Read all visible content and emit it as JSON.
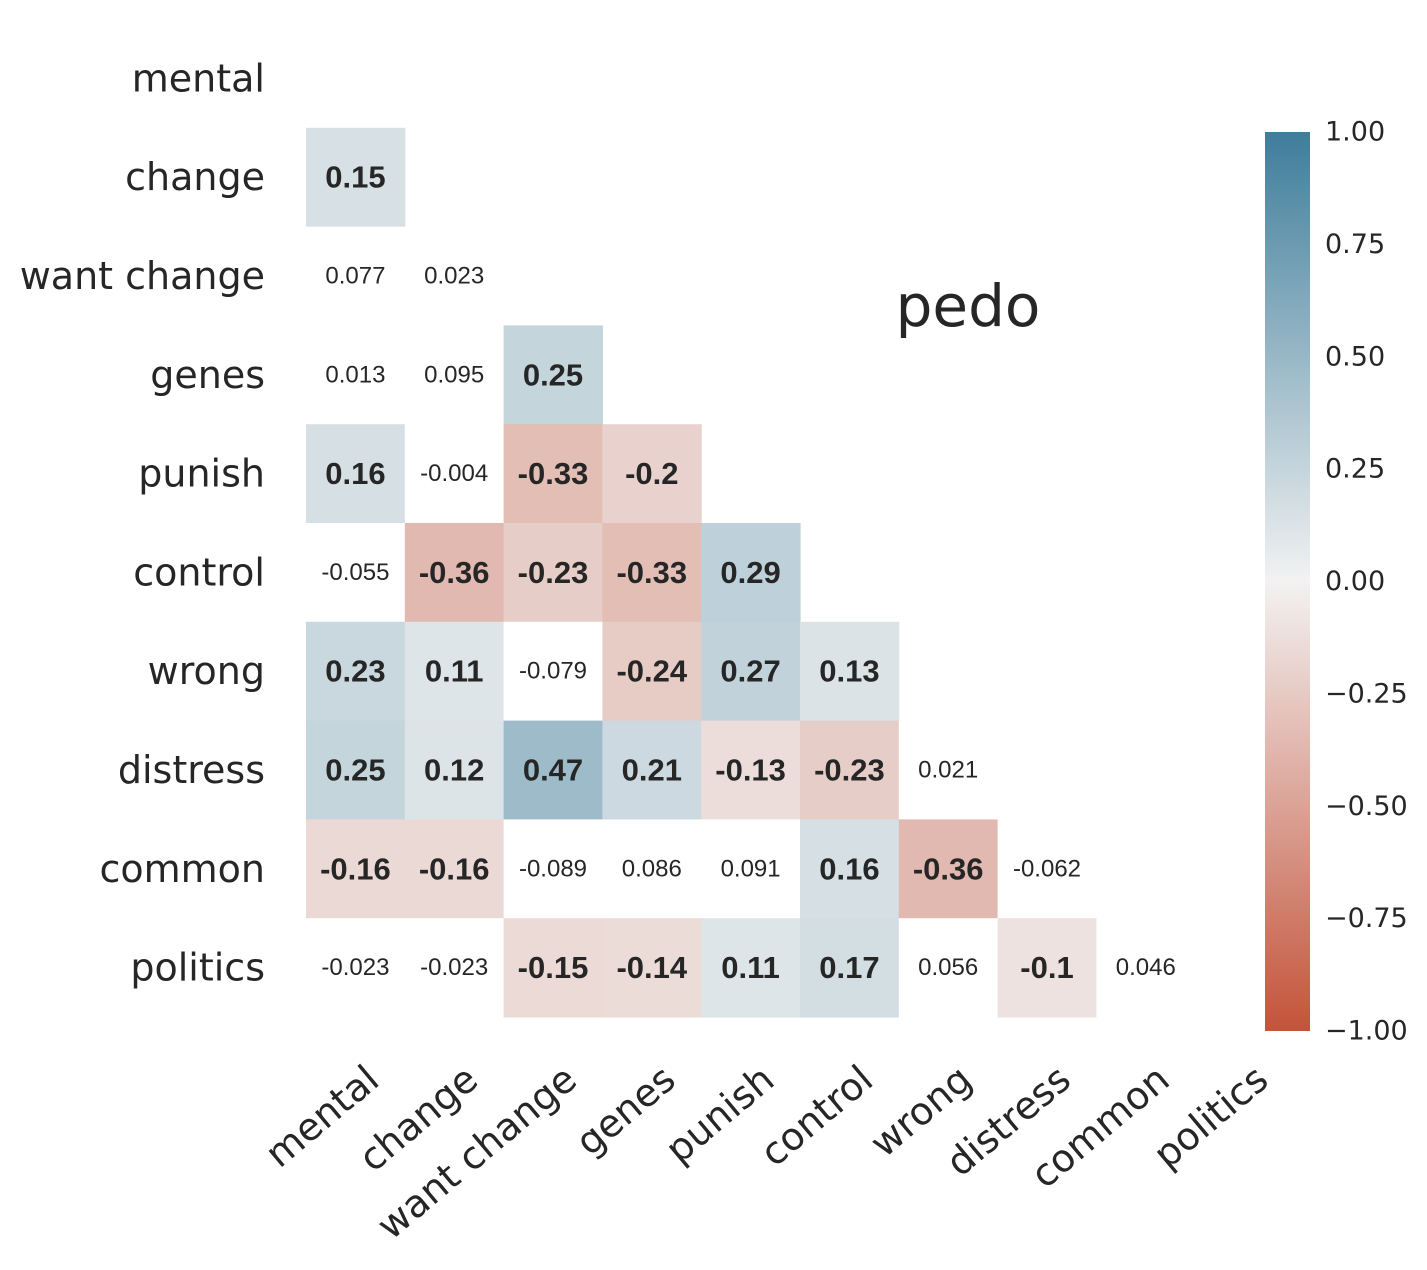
{
  "chart_data": {
    "type": "heatmap",
    "variant": "lower-triangle correlation matrix",
    "annotation": "pedo",
    "labels": [
      "mental",
      "change",
      "want change",
      "genes",
      "punish",
      "control",
      "wrong",
      "distress",
      "common",
      "politics"
    ],
    "cells": [
      {
        "row": 1,
        "col": 0,
        "value": 0.15,
        "text": "0.15"
      },
      {
        "row": 2,
        "col": 0,
        "value": 0.077,
        "text": "0.077"
      },
      {
        "row": 2,
        "col": 1,
        "value": 0.023,
        "text": "0.023"
      },
      {
        "row": 3,
        "col": 0,
        "value": 0.013,
        "text": "0.013"
      },
      {
        "row": 3,
        "col": 1,
        "value": 0.095,
        "text": "0.095"
      },
      {
        "row": 3,
        "col": 2,
        "value": 0.25,
        "text": "0.25"
      },
      {
        "row": 4,
        "col": 0,
        "value": 0.16,
        "text": "0.16"
      },
      {
        "row": 4,
        "col": 1,
        "value": -0.004,
        "text": "-0.004"
      },
      {
        "row": 4,
        "col": 2,
        "value": -0.33,
        "text": "-0.33"
      },
      {
        "row": 4,
        "col": 3,
        "value": -0.2,
        "text": "-0.2"
      },
      {
        "row": 5,
        "col": 0,
        "value": -0.055,
        "text": "-0.055"
      },
      {
        "row": 5,
        "col": 1,
        "value": -0.36,
        "text": "-0.36"
      },
      {
        "row": 5,
        "col": 2,
        "value": -0.23,
        "text": "-0.23"
      },
      {
        "row": 5,
        "col": 3,
        "value": -0.33,
        "text": "-0.33"
      },
      {
        "row": 5,
        "col": 4,
        "value": 0.29,
        "text": "0.29"
      },
      {
        "row": 6,
        "col": 0,
        "value": 0.23,
        "text": "0.23"
      },
      {
        "row": 6,
        "col": 1,
        "value": 0.11,
        "text": "0.11"
      },
      {
        "row": 6,
        "col": 2,
        "value": -0.079,
        "text": "-0.079"
      },
      {
        "row": 6,
        "col": 3,
        "value": -0.24,
        "text": "-0.24"
      },
      {
        "row": 6,
        "col": 4,
        "value": 0.27,
        "text": "0.27"
      },
      {
        "row": 6,
        "col": 5,
        "value": 0.13,
        "text": "0.13"
      },
      {
        "row": 7,
        "col": 0,
        "value": 0.25,
        "text": "0.25"
      },
      {
        "row": 7,
        "col": 1,
        "value": 0.12,
        "text": "0.12"
      },
      {
        "row": 7,
        "col": 2,
        "value": 0.47,
        "text": "0.47"
      },
      {
        "row": 7,
        "col": 3,
        "value": 0.21,
        "text": "0.21"
      },
      {
        "row": 7,
        "col": 4,
        "value": -0.13,
        "text": "-0.13"
      },
      {
        "row": 7,
        "col": 5,
        "value": -0.23,
        "text": "-0.23"
      },
      {
        "row": 7,
        "col": 6,
        "value": 0.021,
        "text": "0.021"
      },
      {
        "row": 8,
        "col": 0,
        "value": -0.16,
        "text": "-0.16"
      },
      {
        "row": 8,
        "col": 1,
        "value": -0.16,
        "text": "-0.16"
      },
      {
        "row": 8,
        "col": 2,
        "value": -0.089,
        "text": "-0.089"
      },
      {
        "row": 8,
        "col": 3,
        "value": 0.086,
        "text": "0.086"
      },
      {
        "row": 8,
        "col": 4,
        "value": 0.091,
        "text": "0.091"
      },
      {
        "row": 8,
        "col": 5,
        "value": 0.16,
        "text": "0.16"
      },
      {
        "row": 8,
        "col": 6,
        "value": -0.36,
        "text": "-0.36"
      },
      {
        "row": 8,
        "col": 7,
        "value": -0.062,
        "text": "-0.062"
      },
      {
        "row": 9,
        "col": 0,
        "value": -0.023,
        "text": "-0.023"
      },
      {
        "row": 9,
        "col": 1,
        "value": -0.023,
        "text": "-0.023"
      },
      {
        "row": 9,
        "col": 2,
        "value": -0.15,
        "text": "-0.15"
      },
      {
        "row": 9,
        "col": 3,
        "value": -0.14,
        "text": "-0.14"
      },
      {
        "row": 9,
        "col": 4,
        "value": 0.11,
        "text": "0.11"
      },
      {
        "row": 9,
        "col": 5,
        "value": 0.17,
        "text": "0.17"
      },
      {
        "row": 9,
        "col": 6,
        "value": 0.056,
        "text": "0.056"
      },
      {
        "row": 9,
        "col": 7,
        "value": -0.1,
        "text": "-0.1"
      },
      {
        "row": 9,
        "col": 8,
        "value": 0.046,
        "text": "0.046"
      }
    ],
    "colorbar": {
      "range": [
        -1.0,
        1.0
      ],
      "ticks": [
        {
          "value": 1.0,
          "label": "1.00"
        },
        {
          "value": 0.75,
          "label": "0.75"
        },
        {
          "value": 0.5,
          "label": "0.50"
        },
        {
          "value": 0.25,
          "label": "0.25"
        },
        {
          "value": 0.0,
          "label": "0.00"
        },
        {
          "value": -0.25,
          "label": "−0.25"
        },
        {
          "value": -0.5,
          "label": "−0.50"
        },
        {
          "value": -0.75,
          "label": "−0.75"
        },
        {
          "value": -1.0,
          "label": "−1.00"
        }
      ],
      "colors": {
        "negative": "#c4533a",
        "neutral": "#f2f2f2",
        "positive": "#3e7d9b"
      }
    },
    "color_threshold": 0.1,
    "grid": false,
    "legend": "colorbar-right"
  }
}
